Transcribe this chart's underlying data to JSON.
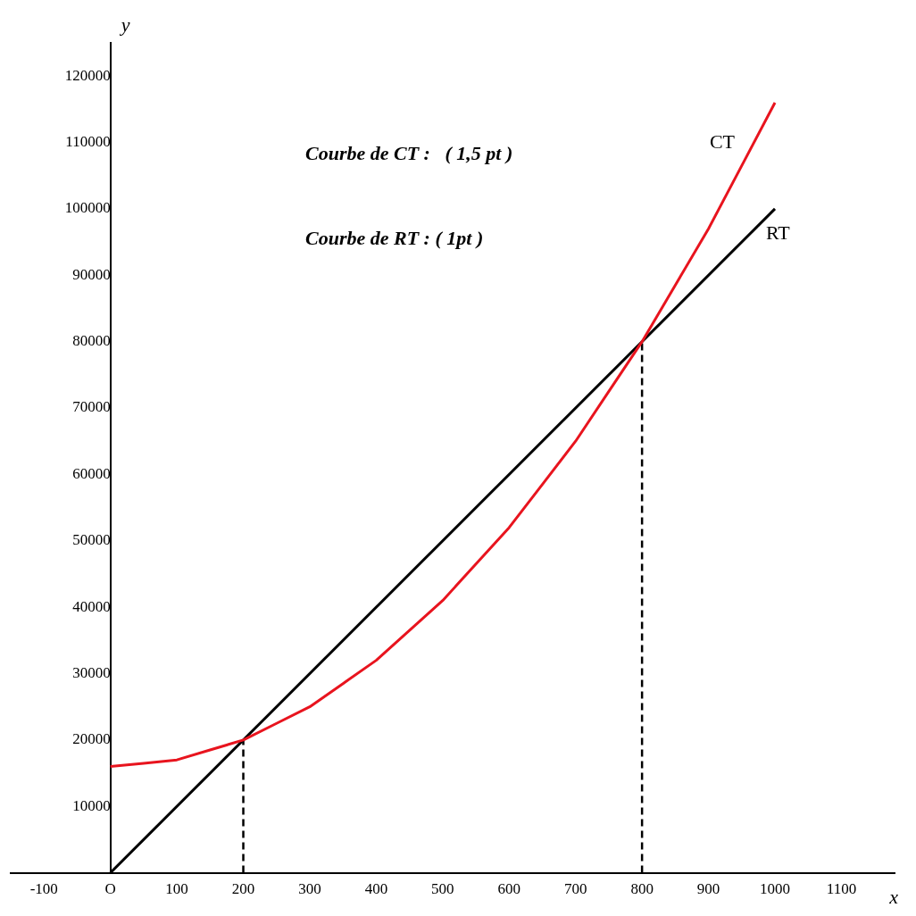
{
  "chart_data": {
    "type": "line",
    "xlabel": "x",
    "ylabel": "y",
    "annotations": [
      "Courbe de CT :   ( 1,5 pt )",
      "Courbe de RT : ( 1pt )"
    ],
    "xlim": [
      -150,
      1180
    ],
    "ylim": [
      0,
      125000
    ],
    "xticks": [
      -100,
      {
        "value": 0,
        "label": "O"
      },
      100,
      200,
      300,
      400,
      500,
      600,
      700,
      800,
      900,
      1000,
      1100
    ],
    "yticks": [
      10000,
      20000,
      30000,
      40000,
      50000,
      60000,
      70000,
      80000,
      90000,
      100000,
      110000,
      120000
    ],
    "grid": false,
    "legend": false,
    "marker": "none",
    "series": [
      {
        "name": "CT",
        "color": "#e8141e",
        "x": [
          0,
          50,
          100,
          150,
          200,
          250,
          300,
          350,
          400,
          450,
          500,
          550,
          600,
          650,
          700,
          750,
          800,
          850,
          900,
          950,
          1000
        ],
        "values": [
          16000,
          16500,
          17000,
          18500,
          20000,
          22500,
          25000,
          28500,
          32000,
          36500,
          41000,
          46500,
          52000,
          58500,
          65000,
          72500,
          80000,
          88500,
          97000,
          106500,
          116000
        ]
      },
      {
        "name": "RT",
        "color": "#000000",
        "x": [
          0,
          1000
        ],
        "values": [
          0,
          100000
        ]
      },
      {
        "color": "#000000",
        "line_style": "dashed",
        "x": [
          200,
          200
        ],
        "values": [
          0,
          20000
        ]
      },
      {
        "color": "#000000",
        "line_style": "dashed",
        "x": [
          800,
          800
        ],
        "values": [
          0,
          80000
        ]
      }
    ]
  }
}
